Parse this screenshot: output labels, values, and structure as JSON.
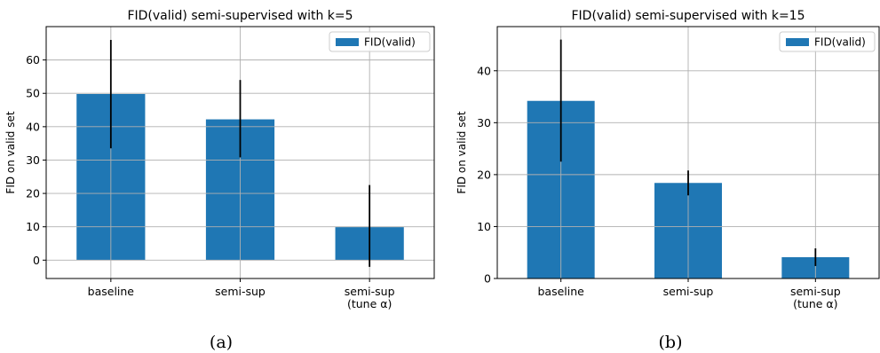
{
  "chart_data": [
    {
      "type": "bar",
      "title": "FID(valid) semi-supervised with k=5",
      "xlabel": "",
      "ylabel": "FID on valid set",
      "categories": [
        [
          "baseline"
        ],
        [
          "semi-sup"
        ],
        [
          "semi-sup",
          "(tune α)"
        ]
      ],
      "series": [
        {
          "name": "FID(valid)",
          "values": [
            49.8,
            42.2,
            9.9
          ],
          "error_low": [
            33.5,
            30.8,
            -2.0
          ],
          "error_high": [
            66.0,
            54.0,
            22.5
          ]
        }
      ],
      "ylim": [
        -5.5,
        70
      ],
      "yticks": [
        0,
        10,
        20,
        30,
        40,
        50,
        60
      ],
      "grid": true,
      "legend": "top-right",
      "bar_color": "#1f77b4",
      "caption": "(a)"
    },
    {
      "type": "bar",
      "title": "FID(valid) semi-supervised with k=15",
      "xlabel": "",
      "ylabel": "FID on valid set",
      "categories": [
        [
          "baseline"
        ],
        [
          "semi-sup"
        ],
        [
          "semi-sup",
          "(tune α)"
        ]
      ],
      "series": [
        {
          "name": "FID(valid)",
          "values": [
            34.2,
            18.4,
            4.1
          ],
          "error_low": [
            22.5,
            16.0,
            2.4
          ],
          "error_high": [
            46.0,
            20.8,
            5.8
          ]
        }
      ],
      "ylim": [
        0,
        48.5
      ],
      "yticks": [
        0,
        10,
        20,
        30,
        40
      ],
      "grid": true,
      "legend": "top-right",
      "bar_color": "#1f77b4",
      "caption": "(b)"
    }
  ]
}
